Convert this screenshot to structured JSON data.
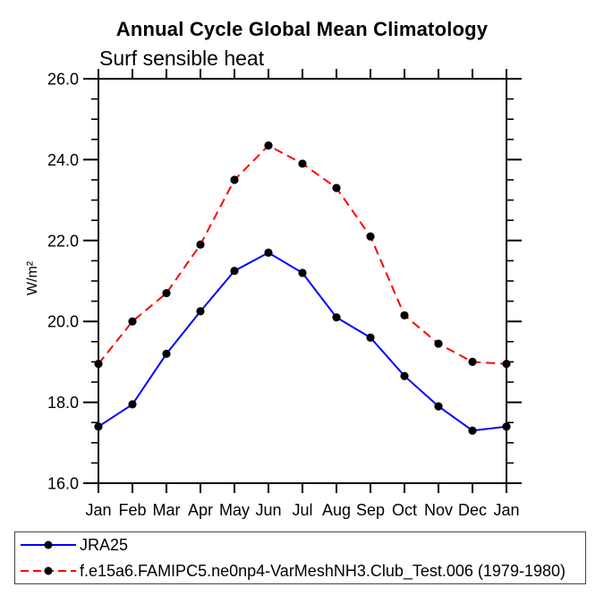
{
  "page": {
    "background": "#ffffff"
  },
  "chart": {
    "title": "Annual Cycle Global Mean Climatology",
    "subtitle": "Surf sensible heat",
    "ylabel": "W/m²"
  },
  "chart_data": {
    "type": "line",
    "categories": [
      "Jan",
      "Feb",
      "Mar",
      "Apr",
      "May",
      "Jun",
      "Jul",
      "Aug",
      "Sep",
      "Oct",
      "Nov",
      "Dec",
      "Jan"
    ],
    "series": [
      {
        "name": "JRA25",
        "color": "#0000ff",
        "line_style": "solid",
        "marker": "filled-circle",
        "marker_color": "#000000",
        "values": [
          17.4,
          17.95,
          19.2,
          20.25,
          21.25,
          21.7,
          21.2,
          20.1,
          19.6,
          18.65,
          17.9,
          17.3,
          17.4
        ]
      },
      {
        "name": "f.e15a6.FAMIPC5.ne0np4-VarMeshNH3.Club_Test.006 (1979-1980)",
        "color": "#ff0000",
        "line_style": "dashed",
        "marker": "filled-circle",
        "marker_color": "#000000",
        "values": [
          18.95,
          20.0,
          20.7,
          21.9,
          23.5,
          24.35,
          23.9,
          23.3,
          22.1,
          20.15,
          19.45,
          19.0,
          18.95
        ]
      }
    ],
    "ylim": [
      16.0,
      26.0
    ],
    "ytick_major": [
      16.0,
      18.0,
      20.0,
      22.0,
      24.0,
      26.0
    ],
    "ytick_minor_step": 0.5,
    "axis_color": "#000000",
    "grid": false,
    "legend_position": "bottom-left-box"
  }
}
